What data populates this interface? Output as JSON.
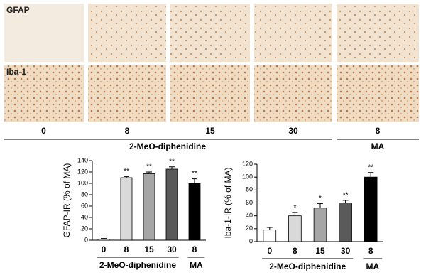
{
  "micrographs": {
    "row_labels": [
      "GFAP",
      "Iba-1"
    ],
    "column_labels": [
      "0",
      "8",
      "15",
      "30",
      "8"
    ],
    "group_labels": [
      "2-MeO-diphenidine",
      "MA"
    ]
  },
  "chart_data": [
    {
      "type": "bar",
      "y_label": "GFAP-IR (% of MA)",
      "categories": [
        "0",
        "8",
        "15",
        "30",
        "8"
      ],
      "values": [
        2,
        110,
        117,
        125,
        100
      ],
      "errors": [
        1,
        2,
        3,
        4,
        8
      ],
      "annotations": [
        null,
        "**",
        "**",
        "**",
        "**"
      ],
      "colors": [
        "#ffffff",
        "#d9d9d9",
        "#a6a6a6",
        "#5a5a5a",
        "#000000"
      ],
      "group_labels": [
        "2-MeO-diphenidine",
        "MA"
      ],
      "ylim": [
        0,
        140
      ],
      "yticks": [
        0,
        20,
        40,
        60,
        80,
        100,
        120,
        140
      ],
      "grid": false
    },
    {
      "type": "bar",
      "y_label": "Iba-1-IR (% of MA)",
      "categories": [
        "0",
        "8",
        "15",
        "30",
        "8"
      ],
      "values": [
        18,
        40,
        52,
        60,
        100
      ],
      "errors": [
        4,
        5,
        7,
        4,
        7
      ],
      "annotations": [
        null,
        "*",
        "*",
        "**",
        "**"
      ],
      "colors": [
        "#ffffff",
        "#d9d9d9",
        "#a6a6a6",
        "#5a5a5a",
        "#000000"
      ],
      "group_labels": [
        "2-MeO-diphenidine",
        "MA"
      ],
      "ylim": [
        0,
        120
      ],
      "yticks": [
        0,
        20,
        40,
        60,
        80,
        100,
        120
      ],
      "grid": false
    }
  ]
}
